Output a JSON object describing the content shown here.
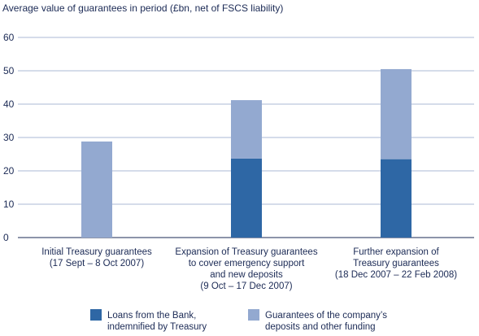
{
  "chart_data": {
    "type": "bar",
    "stacked": true,
    "ylabel": "Average value of guarantees in period (£bn, net of FSCS liability)",
    "ylim": [
      0,
      60
    ],
    "yticks": [
      "0",
      "10",
      "20",
      "30",
      "40",
      "50",
      "60"
    ],
    "grid": true,
    "legend_position": "bottom",
    "categories": [
      [
        "Initial Treasury guarantees",
        "(17 Sept – 8 Oct 2007)"
      ],
      [
        "Expansion of Treasury guarantees",
        "to cover emergency support",
        "and new deposits",
        "(9 Oct – 17 Dec 2007)"
      ],
      [
        "Further expansion of",
        "Treasury guarantees",
        "(18 Dec 2007 – 22 Feb 2008)"
      ]
    ],
    "series": [
      {
        "name": [
          "Loans from the Bank,",
          "indemnified by Treasury"
        ],
        "color": "#2e67a5",
        "values": [
          0,
          23.7,
          23.5
        ]
      },
      {
        "name": [
          "Guarantees of the company’s",
          "deposits and other funding"
        ],
        "color": "#93a9d0",
        "values": [
          28.8,
          17.5,
          27.0
        ]
      }
    ]
  }
}
